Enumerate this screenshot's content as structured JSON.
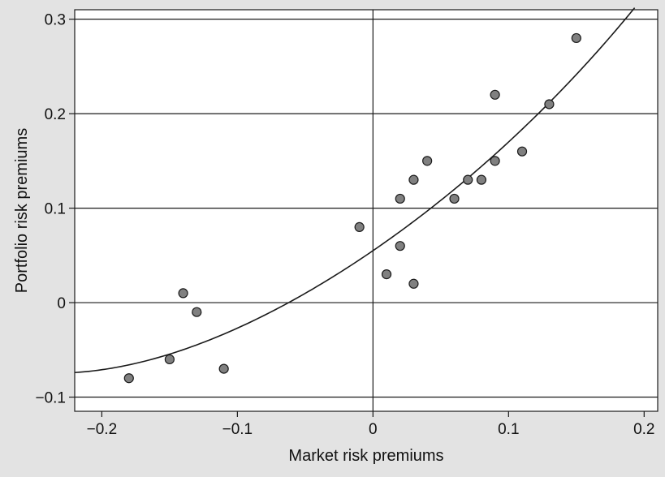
{
  "chart_data": {
    "type": "scatter",
    "xlabel": "Market risk premiums",
    "ylabel": "Portfolio risk premiums",
    "xlim": [
      -0.22,
      0.21
    ],
    "ylim": [
      -0.115,
      0.31
    ],
    "x_ticks": [
      -0.2,
      -0.1,
      0,
      0.1,
      0.2
    ],
    "x_tick_labels": [
      "−0.2",
      "−0.1",
      "0",
      "0.1",
      "0.2"
    ],
    "y_ticks": [
      -0.1,
      0,
      0.1,
      0.2,
      0.3
    ],
    "y_tick_labels": [
      "−0.1",
      "0",
      "0.1",
      "0.2",
      "0.3"
    ],
    "grid": "horizontal",
    "points": [
      {
        "x": -0.18,
        "y": -0.08
      },
      {
        "x": -0.15,
        "y": -0.06
      },
      {
        "x": -0.14,
        "y": 0.01
      },
      {
        "x": -0.13,
        "y": -0.01
      },
      {
        "x": -0.11,
        "y": -0.07
      },
      {
        "x": -0.01,
        "y": 0.08
      },
      {
        "x": 0.01,
        "y": 0.03
      },
      {
        "x": 0.02,
        "y": 0.06
      },
      {
        "x": 0.02,
        "y": 0.11
      },
      {
        "x": 0.03,
        "y": 0.02
      },
      {
        "x": 0.03,
        "y": 0.13
      },
      {
        "x": 0.04,
        "y": 0.15
      },
      {
        "x": 0.06,
        "y": 0.11
      },
      {
        "x": 0.07,
        "y": 0.13
      },
      {
        "x": 0.08,
        "y": 0.13
      },
      {
        "x": 0.09,
        "y": 0.15
      },
      {
        "x": 0.09,
        "y": 0.22
      },
      {
        "x": 0.11,
        "y": 0.16
      },
      {
        "x": 0.13,
        "y": 0.21
      },
      {
        "x": 0.15,
        "y": 0.28
      }
    ],
    "fit_curve": {
      "type": "quadratic",
      "x_range": [
        -0.22,
        0.193
      ],
      "points": [
        {
          "x": -0.22,
          "y": -0.074
        },
        {
          "x": -0.1,
          "y": -0.027
        },
        {
          "x": 0,
          "y": 0.055
        },
        {
          "x": 0.1,
          "y": 0.17
        },
        {
          "x": 0.193,
          "y": 0.312
        }
      ]
    },
    "colors": {
      "background": "#e3e3e3",
      "plot_area": "#ffffff",
      "marker_fill": "#808080",
      "marker_stroke": "#1a1a1a",
      "lines": "#1a1a1a"
    }
  }
}
